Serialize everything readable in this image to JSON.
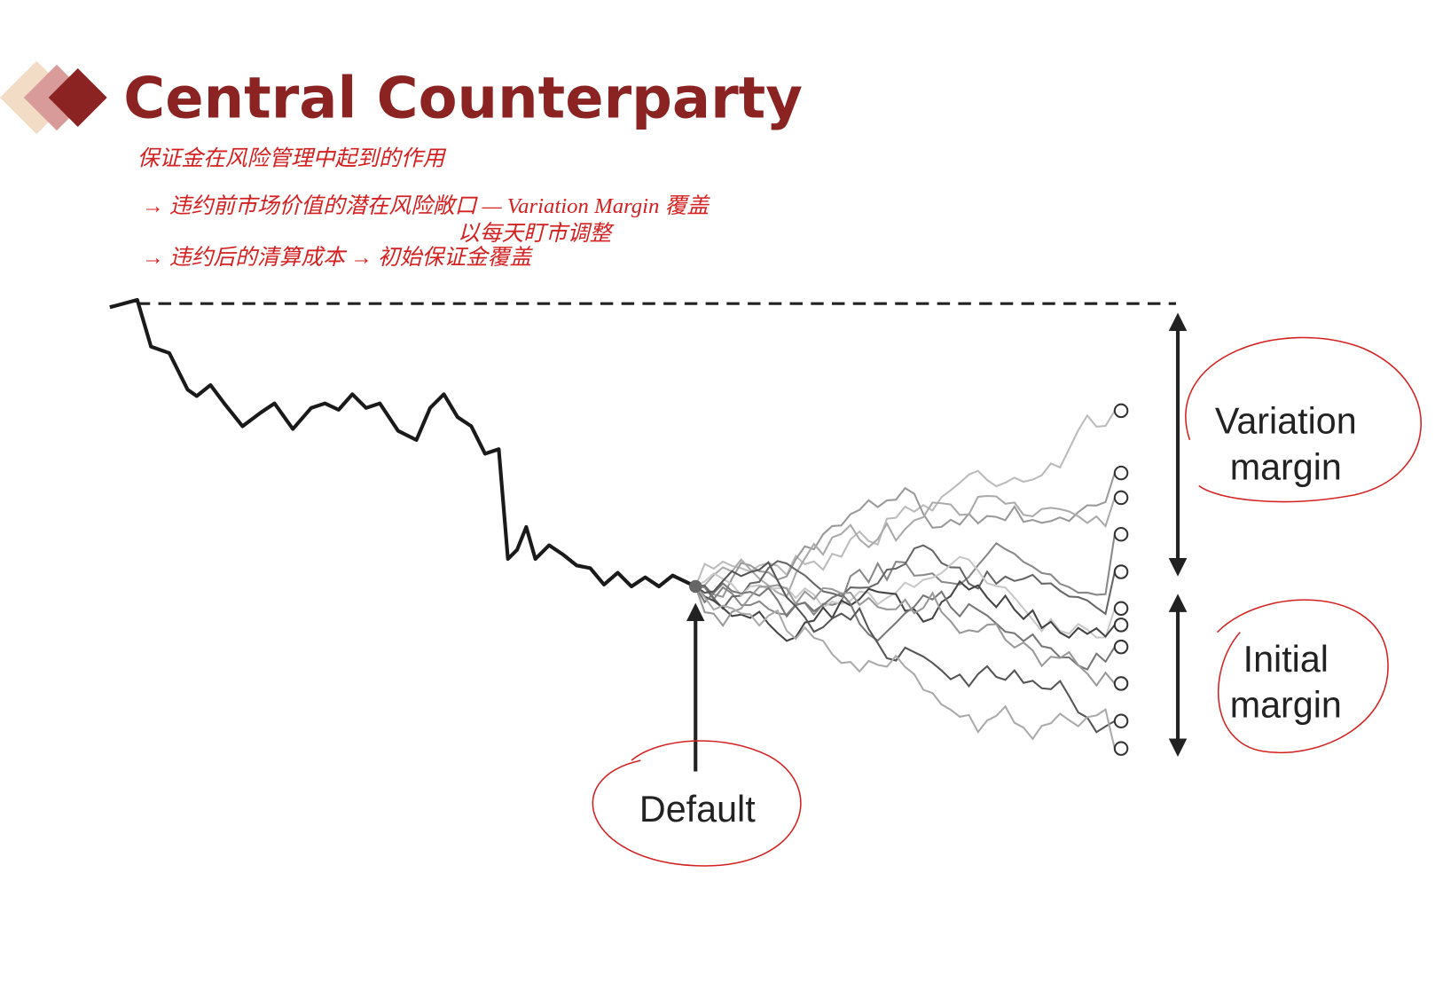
{
  "header": {
    "title": "Central Counterparty"
  },
  "notes": [
    "保证金在风险管理中起到的作用",
    "→ 违约前市场价值的潜在风险敞口 — Variation Margin 覆盖",
    "→ 违约后的清算成本 → 初始保证金覆盖",
    "以每天盯市调整"
  ],
  "diagram": {
    "variation_margin": [
      "Variation",
      "margin"
    ],
    "initial_margin": [
      "Initial",
      "margin"
    ],
    "default": "Default"
  }
}
